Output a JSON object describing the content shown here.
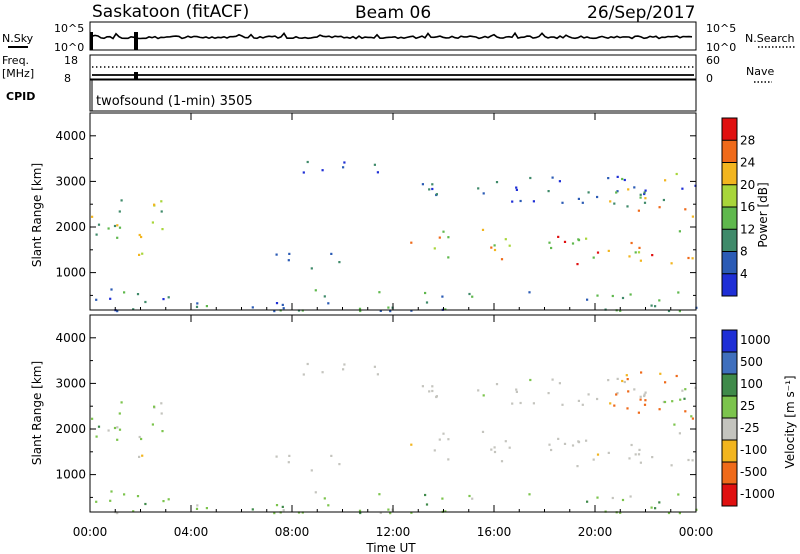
{
  "header": {
    "station": "Saskatoon (fitACF)",
    "beam": "Beam 06",
    "date": "26/Sep/2017",
    "left_labels": {
      "nsky": "N.Sky",
      "nsky_hi": "10^5",
      "nsky_lo": "10^0",
      "freq": "Freq.",
      "freq_unit": "[MHz]",
      "freq_hi": "18",
      "freq_lo": "8",
      "cpid": "CPID"
    },
    "right_labels": {
      "nsearch": "N.Search",
      "nsearch_hi": "10^5",
      "nsearch_lo": "10^0",
      "nave": "Nave",
      "nave_hi": "60",
      "nave_lo": "0"
    },
    "program": "twofsound (1-min) 3505"
  },
  "chart_data": [
    {
      "type": "heatmap",
      "name": "Power",
      "xlabel": "",
      "ylabel": "Slant Range [km]",
      "x_range_hours": [
        0,
        24
      ],
      "y_range_km": [
        180,
        4500
      ],
      "y_ticks": [
        "1000",
        "2000",
        "3000",
        "4000"
      ],
      "colorbar_label": "Power [dB]",
      "colorbar_ticks": [
        "4",
        "8",
        "12",
        "16",
        "20",
        "24",
        "28"
      ],
      "colorbar_range": [
        0,
        32
      ],
      "colors": [
        "#1f2fd6",
        "#2b5bb5",
        "#3f8a6a",
        "#5fb84d",
        "#a8d63a",
        "#f2b51f",
        "#ef6a1a",
        "#e01010"
      ],
      "regions": [
        {
          "t": [
            0.0,
            2.9
          ],
          "r": [
            1500,
            2850
          ],
          "level": [
            10,
            24
          ]
        },
        {
          "t": [
            1.8,
            2.9
          ],
          "r": [
            1050,
            1450
          ],
          "level": [
            16,
            28
          ]
        },
        {
          "t": [
            6.8,
            10.0
          ],
          "r": [
            1050,
            1450
          ],
          "level": [
            4,
            12
          ]
        },
        {
          "t": [
            7.3,
            11.5
          ],
          "r": [
            3150,
            3500
          ],
          "level": [
            2,
            10
          ]
        },
        {
          "t": [
            12.6,
            24.0
          ],
          "r": [
            1150,
            2050
          ],
          "level": [
            12,
            30
          ]
        },
        {
          "t": [
            13.0,
            24.0
          ],
          "r": [
            2550,
            3250
          ],
          "level": [
            2,
            10
          ]
        },
        {
          "t": [
            20.5,
            24.0
          ],
          "r": [
            2250,
            3200
          ],
          "level": [
            6,
            26
          ]
        },
        {
          "t": [
            0.2,
            24.0
          ],
          "r": [
            180,
            700
          ],
          "level": [
            2,
            16
          ]
        }
      ]
    },
    {
      "type": "heatmap",
      "name": "Velocity",
      "xlabel": "Time UT",
      "ylabel": "Slant Range [km]",
      "x_ticks": [
        "00:00",
        "04:00",
        "08:00",
        "12:00",
        "16:00",
        "20:00",
        "00:00"
      ],
      "y_range_km": [
        180,
        4500
      ],
      "y_ticks": [
        "1000",
        "2000",
        "3000",
        "4000"
      ],
      "colorbar_label": "Velocity [m s⁻¹]",
      "colorbar_ticks": [
        "1000",
        "500",
        "100",
        "25",
        "-25",
        "-100",
        "-500",
        "-1000"
      ],
      "colors": [
        "#1f2fd6",
        "#3f6fbd",
        "#3f8a4a",
        "#7cc44d",
        "#c4c4be",
        "#f2b51f",
        "#ef6a1a",
        "#e01010"
      ],
      "regions": [
        {
          "t": [
            0.0,
            2.9
          ],
          "r": [
            1500,
            2850
          ],
          "class": "mixed-green"
        },
        {
          "t": [
            1.8,
            2.9
          ],
          "r": [
            1050,
            1450
          ],
          "class": "grey"
        },
        {
          "t": [
            6.8,
            10.0
          ],
          "r": [
            1050,
            1450
          ],
          "class": "grey"
        },
        {
          "t": [
            7.3,
            11.5
          ],
          "r": [
            3150,
            3500
          ],
          "class": "grey"
        },
        {
          "t": [
            12.6,
            24.0
          ],
          "r": [
            1150,
            2050
          ],
          "class": "grey"
        },
        {
          "t": [
            13.0,
            24.0
          ],
          "r": [
            2550,
            3250
          ],
          "class": "grey"
        },
        {
          "t": [
            20.5,
            22.8
          ],
          "r": [
            3000,
            3300
          ],
          "class": "orange"
        },
        {
          "t": [
            22.5,
            24.0
          ],
          "r": [
            2100,
            2900
          ],
          "class": "green"
        },
        {
          "t": [
            0.2,
            24.0
          ],
          "r": [
            180,
            700
          ],
          "class": "yellow-green"
        }
      ]
    }
  ]
}
